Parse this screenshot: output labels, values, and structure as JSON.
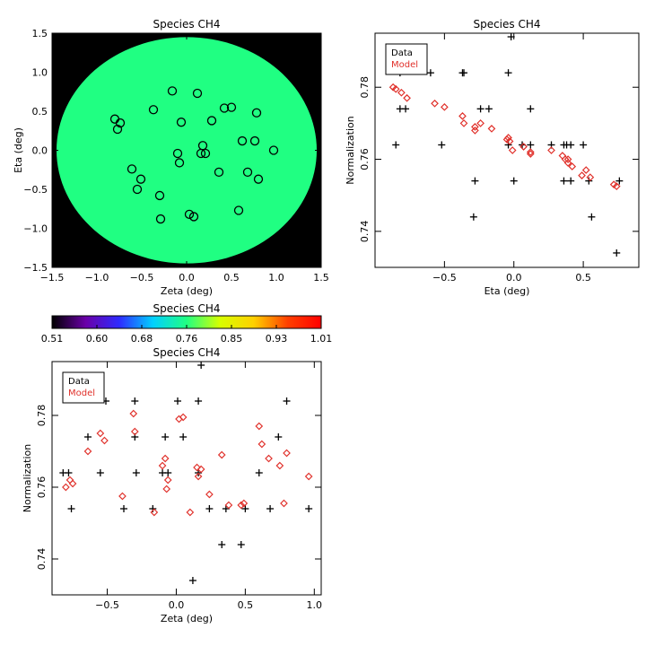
{
  "chart_data": [
    {
      "type": "scatter",
      "title": "Species CH4",
      "xlabel": "Zeta (deg)",
      "ylabel": "Eta (deg)",
      "xlim": [
        -1.5,
        1.5
      ],
      "ylim": [
        -1.5,
        1.5
      ],
      "xticks": [
        "−1.5",
        "−1.0",
        "−0.5",
        "0.0",
        "0.5",
        "1.0",
        "1.5"
      ],
      "yticks": [
        "−1.5",
        "−1.0",
        "−0.5",
        "0.0",
        "0.5",
        "1.0",
        "1.5"
      ],
      "background": "#000000",
      "disk_color": "#20ff82",
      "disk_radius": 1.45,
      "marker": "circle",
      "points": [
        [
          -0.8,
          0.4
        ],
        [
          -0.74,
          0.35
        ],
        [
          -0.77,
          0.27
        ],
        [
          -0.37,
          0.52
        ],
        [
          -0.16,
          0.76
        ],
        [
          0.12,
          0.73
        ],
        [
          0.42,
          0.54
        ],
        [
          0.5,
          0.55
        ],
        [
          0.28,
          0.38
        ],
        [
          -0.06,
          0.36
        ],
        [
          0.78,
          0.48
        ],
        [
          0.62,
          0.12
        ],
        [
          0.76,
          0.12
        ],
        [
          0.97,
          0.0
        ],
        [
          0.18,
          0.06
        ],
        [
          0.16,
          -0.04
        ],
        [
          0.21,
          -0.04
        ],
        [
          -0.1,
          -0.04
        ],
        [
          -0.08,
          -0.16
        ],
        [
          -0.61,
          -0.24
        ],
        [
          -0.51,
          -0.37
        ],
        [
          -0.55,
          -0.5
        ],
        [
          0.68,
          -0.28
        ],
        [
          0.8,
          -0.37
        ],
        [
          0.36,
          -0.28
        ],
        [
          -0.3,
          -0.58
        ],
        [
          0.58,
          -0.77
        ],
        [
          0.03,
          -0.82
        ],
        [
          0.08,
          -0.85
        ],
        [
          -0.29,
          -0.88
        ]
      ]
    },
    {
      "type": "scatter",
      "title": "Species CH4",
      "xlabel": "Eta (deg)",
      "ylabel": "Normalization",
      "xlim": [
        -1.0,
        0.9
      ],
      "ylim": [
        0.73,
        0.795
      ],
      "xticks": [
        "−0.5",
        "0.0",
        "0.5"
      ],
      "yticks": [
        "0.74",
        "0.76",
        "0.78"
      ],
      "legend": [
        "Data",
        "Model"
      ],
      "legend_position": "top-left",
      "series": [
        {
          "name": "Data",
          "marker": "plus",
          "color": "#000000",
          "points": [
            [
              -0.85,
              0.764
            ],
            [
              -0.82,
              0.774
            ],
            [
              -0.82,
              0.784
            ],
            [
              -0.78,
              0.774
            ],
            [
              -0.6,
              0.784
            ],
            [
              -0.52,
              0.764
            ],
            [
              -0.37,
              0.784
            ],
            [
              -0.36,
              0.784
            ],
            [
              -0.29,
              0.744
            ],
            [
              -0.28,
              0.754
            ],
            [
              -0.24,
              0.774
            ],
            [
              -0.18,
              0.774
            ],
            [
              -0.04,
              0.784
            ],
            [
              -0.04,
              0.764
            ],
            [
              -0.02,
              0.794
            ],
            [
              0.0,
              0.754
            ],
            [
              0.06,
              0.764
            ],
            [
              0.12,
              0.764
            ],
            [
              0.12,
              0.774
            ],
            [
              0.27,
              0.764
            ],
            [
              0.36,
              0.764
            ],
            [
              0.36,
              0.754
            ],
            [
              0.38,
              0.764
            ],
            [
              0.41,
              0.754
            ],
            [
              0.41,
              0.764
            ],
            [
              0.5,
              0.764
            ],
            [
              0.54,
              0.754
            ],
            [
              0.56,
              0.744
            ],
            [
              0.74,
              0.734
            ],
            [
              0.76,
              0.754
            ]
          ]
        },
        {
          "name": "Model",
          "marker": "diamond",
          "color": "#e0302a",
          "points": [
            [
              -0.87,
              0.78
            ],
            [
              -0.85,
              0.7795
            ],
            [
              -0.81,
              0.7785
            ],
            [
              -0.77,
              0.777
            ],
            [
              -0.57,
              0.7755
            ],
            [
              -0.5,
              0.7745
            ],
            [
              -0.37,
              0.772
            ],
            [
              -0.36,
              0.77
            ],
            [
              -0.28,
              0.769
            ],
            [
              -0.28,
              0.768
            ],
            [
              -0.24,
              0.77
            ],
            [
              -0.16,
              0.7685
            ],
            [
              -0.05,
              0.7655
            ],
            [
              -0.03,
              0.765
            ],
            [
              -0.04,
              0.766
            ],
            [
              -0.01,
              0.7625
            ],
            [
              0.07,
              0.7635
            ],
            [
              0.12,
              0.762
            ],
            [
              0.12,
              0.7615
            ],
            [
              0.27,
              0.7625
            ],
            [
              0.35,
              0.761
            ],
            [
              0.37,
              0.76
            ],
            [
              0.39,
              0.76
            ],
            [
              0.39,
              0.759
            ],
            [
              0.42,
              0.758
            ],
            [
              0.49,
              0.7555
            ],
            [
              0.52,
              0.757
            ],
            [
              0.55,
              0.755
            ],
            [
              0.72,
              0.753
            ],
            [
              0.74,
              0.7525
            ]
          ]
        }
      ]
    },
    {
      "type": "colorbar",
      "title": "Species CH4",
      "ticks": [
        "0.51",
        "0.60",
        "0.68",
        "0.76",
        "0.85",
        "0.93",
        "1.01"
      ],
      "colors": [
        "#000000",
        "#6a00a8",
        "#2e2bff",
        "#00d0ff",
        "#20ff82",
        "#d8ff00",
        "#ffd000",
        "#ff4000",
        "#ff0000"
      ]
    },
    {
      "type": "scatter",
      "title": "Species CH4",
      "xlabel": "Zeta (deg)",
      "ylabel": "Normalization",
      "xlim": [
        -0.9,
        1.05
      ],
      "ylim": [
        0.73,
        0.795
      ],
      "xticks": [
        "−0.5",
        "0.0",
        "0.5",
        "1.0"
      ],
      "yticks": [
        "0.74",
        "0.76",
        "0.78"
      ],
      "legend": [
        "Data",
        "Model"
      ],
      "legend_position": "top-left",
      "series": [
        {
          "name": "Data",
          "marker": "plus",
          "color": "#000000",
          "points": [
            [
              -0.82,
              0.764
            ],
            [
              -0.78,
              0.764
            ],
            [
              -0.76,
              0.754
            ],
            [
              -0.64,
              0.774
            ],
            [
              -0.55,
              0.764
            ],
            [
              -0.51,
              0.784
            ],
            [
              -0.38,
              0.754
            ],
            [
              -0.3,
              0.784
            ],
            [
              -0.3,
              0.774
            ],
            [
              -0.29,
              0.764
            ],
            [
              -0.17,
              0.754
            ],
            [
              -0.1,
              0.764
            ],
            [
              -0.08,
              0.774
            ],
            [
              -0.06,
              0.764
            ],
            [
              0.01,
              0.784
            ],
            [
              0.05,
              0.774
            ],
            [
              0.12,
              0.734
            ],
            [
              0.16,
              0.784
            ],
            [
              0.16,
              0.764
            ],
            [
              0.18,
              0.794
            ],
            [
              0.24,
              0.754
            ],
            [
              0.33,
              0.744
            ],
            [
              0.36,
              0.754
            ],
            [
              0.47,
              0.744
            ],
            [
              0.5,
              0.754
            ],
            [
              0.6,
              0.764
            ],
            [
              0.68,
              0.754
            ],
            [
              0.74,
              0.774
            ],
            [
              0.8,
              0.784
            ],
            [
              0.96,
              0.754
            ]
          ]
        },
        {
          "name": "Model",
          "marker": "diamond",
          "color": "#e0302a",
          "points": [
            [
              -0.8,
              0.76
            ],
            [
              -0.77,
              0.762
            ],
            [
              -0.75,
              0.761
            ],
            [
              -0.64,
              0.77
            ],
            [
              -0.55,
              0.775
            ],
            [
              -0.52,
              0.773
            ],
            [
              -0.39,
              0.7575
            ],
            [
              -0.31,
              0.7805
            ],
            [
              -0.3,
              0.7755
            ],
            [
              -0.16,
              0.753
            ],
            [
              -0.1,
              0.766
            ],
            [
              -0.08,
              0.768
            ],
            [
              -0.06,
              0.762
            ],
            [
              -0.07,
              0.7595
            ],
            [
              0.02,
              0.779
            ],
            [
              0.05,
              0.7795
            ],
            [
              0.1,
              0.753
            ],
            [
              0.15,
              0.7655
            ],
            [
              0.16,
              0.763
            ],
            [
              0.18,
              0.765
            ],
            [
              0.24,
              0.758
            ],
            [
              0.33,
              0.769
            ],
            [
              0.38,
              0.755
            ],
            [
              0.47,
              0.755
            ],
            [
              0.49,
              0.7555
            ],
            [
              0.6,
              0.777
            ],
            [
              0.62,
              0.772
            ],
            [
              0.67,
              0.768
            ],
            [
              0.75,
              0.766
            ],
            [
              0.78,
              0.7555
            ],
            [
              0.8,
              0.7695
            ],
            [
              0.96,
              0.763
            ]
          ]
        }
      ]
    }
  ]
}
